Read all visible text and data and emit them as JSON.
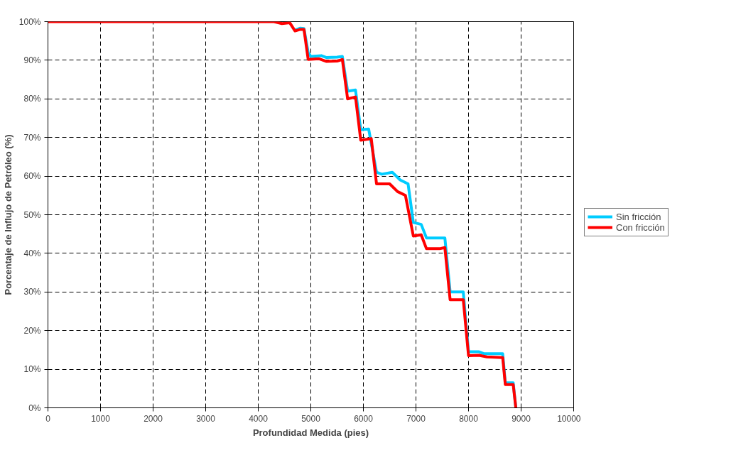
{
  "chart_data": {
    "type": "line",
    "xlabel": "Profundidad Medida (pies)",
    "ylabel": "Porcentaje de Influjo de Petróleo (%)",
    "xlim": [
      0,
      10000
    ],
    "xticks": [
      0,
      1000,
      2000,
      3000,
      4000,
      5000,
      6000,
      7000,
      8000,
      9000,
      10000
    ],
    "ylim": [
      0,
      100
    ],
    "yticks": [
      {
        "value": 0,
        "label": "0%"
      },
      {
        "value": 10,
        "label": "10%"
      },
      {
        "value": 20,
        "label": "20%"
      },
      {
        "value": 30,
        "label": "30%"
      },
      {
        "value": 40,
        "label": "40%"
      },
      {
        "value": 50,
        "label": "50%"
      },
      {
        "value": 60,
        "label": "60%"
      },
      {
        "value": 70,
        "label": "70%"
      },
      {
        "value": 80,
        "label": "80%"
      },
      {
        "value": 90,
        "label": "90%"
      },
      {
        "value": 100,
        "label": "100%"
      }
    ],
    "grid": true,
    "legend": "right",
    "marker": "none",
    "line_style": "solid",
    "series": [
      {
        "name": "Sin fricción",
        "color": "#00ccff",
        "x": [
          4700,
          4800,
          4870,
          4950,
          5000,
          5200,
          5300,
          5500,
          5600,
          5700,
          5850,
          5950,
          6100,
          6250,
          6350,
          6550,
          6700,
          6850,
          6950,
          7100,
          7200,
          7450,
          7550,
          7650,
          7900,
          8000,
          8200,
          8300,
          8600,
          8650,
          8700,
          8850,
          8900
        ],
        "values": [
          97.8,
          98.3,
          98.2,
          92,
          91,
          91.2,
          90.7,
          90.8,
          91,
          82,
          82.3,
          72,
          72.2,
          61,
          60.5,
          61,
          59,
          58,
          48,
          47.5,
          44,
          44,
          44,
          30,
          30,
          14.5,
          14.5,
          14,
          14,
          14,
          6.5,
          6.5,
          0
        ]
      },
      {
        "name": "Con fricción",
        "color": "#ff0000",
        "x": [
          0,
          4300,
          4450,
          4600,
          4700,
          4800,
          4870,
          4950,
          5150,
          5300,
          5500,
          5600,
          5700,
          5850,
          5950,
          6150,
          6250,
          6500,
          6650,
          6800,
          6950,
          7100,
          7200,
          7450,
          7550,
          7650,
          7900,
          8000,
          8200,
          8350,
          8650,
          8700,
          8850,
          8900
        ],
        "values": [
          100,
          100,
          99.5,
          99.7,
          97.6,
          98,
          98,
          90.2,
          90.4,
          89.7,
          89.8,
          90.2,
          80,
          80.5,
          69.3,
          69.7,
          58,
          58,
          56,
          55,
          44.5,
          44.8,
          41.2,
          41.2,
          41.5,
          28,
          28,
          13.5,
          13.6,
          13.2,
          13,
          6,
          6,
          0
        ]
      }
    ]
  }
}
